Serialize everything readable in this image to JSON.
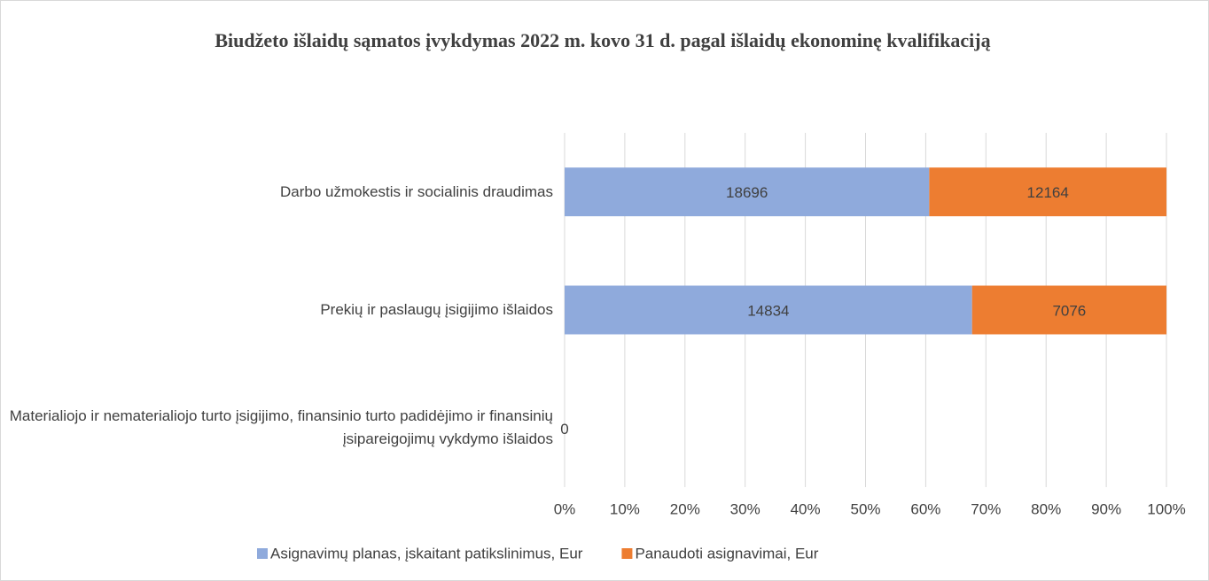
{
  "chart_data": {
    "type": "bar_stacked_100",
    "title": "Biudžeto išlaidų sąmatos įvykdymas 2022 m. kovo 31 d. pagal išlaidų ekonominę kvalifikaciją",
    "categories": [
      "Darbo užmokestis ir socialinis draudimas",
      "Prekių ir paslaugų įsigijimo išlaidos",
      "Materialiojo ir nematerialiojo turto įsigijimo, finansinio turto padidėjimo ir finansinių įsipareigojimų vykdymo išlaidos"
    ],
    "series": [
      {
        "name": "Asignavimų planas, įskaitant patikslinimus, Eur",
        "color": "#8faadc",
        "values": [
          18696,
          14834,
          0
        ]
      },
      {
        "name": "Panaudoti asignavimai, Eur",
        "color": "#ed7d31",
        "values": [
          12164,
          7076,
          null
        ]
      }
    ],
    "xlim": [
      0,
      100
    ],
    "xticks": [
      {
        "value": 0,
        "label": "0%"
      },
      {
        "value": 10,
        "label": "10%"
      },
      {
        "value": 20,
        "label": "20%"
      },
      {
        "value": 30,
        "label": "30%"
      },
      {
        "value": 40,
        "label": "40%"
      },
      {
        "value": 50,
        "label": "50%"
      },
      {
        "value": 60,
        "label": "60%"
      },
      {
        "value": 70,
        "label": "70%"
      },
      {
        "value": 80,
        "label": "80%"
      },
      {
        "value": 90,
        "label": "90%"
      },
      {
        "value": 100,
        "label": "100%"
      }
    ],
    "grid": true,
    "legend": "bottom"
  }
}
